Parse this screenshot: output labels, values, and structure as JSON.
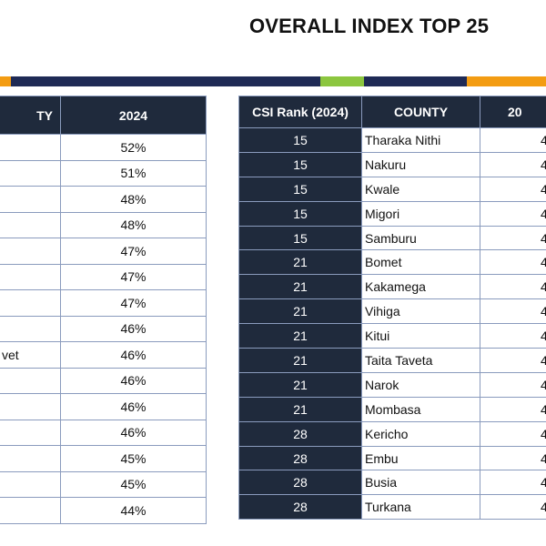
{
  "header": {
    "title": "OVERALL INDEX TOP 25"
  },
  "left_table": {
    "columns": [
      "TY",
      "2024"
    ],
    "rows": [
      {
        "value": "52%"
      },
      {
        "value": "51%"
      },
      {
        "value": "48%"
      },
      {
        "value": "48%"
      },
      {
        "value": "47%"
      },
      {
        "value": "47%"
      },
      {
        "value": "47%"
      },
      {
        "value": "46%"
      },
      {
        "county": "vet",
        "value": "46%"
      },
      {
        "value": "46%"
      },
      {
        "value": "46%"
      },
      {
        "value": "46%"
      },
      {
        "value": "45%"
      },
      {
        "value": "45%"
      },
      {
        "value": "44%"
      }
    ]
  },
  "right_table": {
    "columns": [
      "CSI Rank (2024)",
      "COUNTY",
      "20"
    ],
    "rows": [
      [
        "15",
        "Tharaka Nithi",
        "4"
      ],
      [
        "15",
        "Nakuru",
        "4"
      ],
      [
        "15",
        "Kwale",
        "4"
      ],
      [
        "15",
        "Migori",
        "4"
      ],
      [
        "15",
        "Samburu",
        "4"
      ],
      [
        "21",
        "Bomet",
        "4"
      ],
      [
        "21",
        "Kakamega",
        "4"
      ],
      [
        "21",
        "Vihiga",
        "4"
      ],
      [
        "21",
        "Kitui",
        "4"
      ],
      [
        "21",
        "Taita Taveta",
        "4"
      ],
      [
        "21",
        "Narok",
        "4"
      ],
      [
        "21",
        "Mombasa",
        "4"
      ],
      [
        "28",
        "Kericho",
        "4"
      ],
      [
        "28",
        "Embu",
        "4"
      ],
      [
        "28",
        "Busia",
        "4"
      ],
      [
        "28",
        "Turkana",
        "4"
      ]
    ]
  }
}
